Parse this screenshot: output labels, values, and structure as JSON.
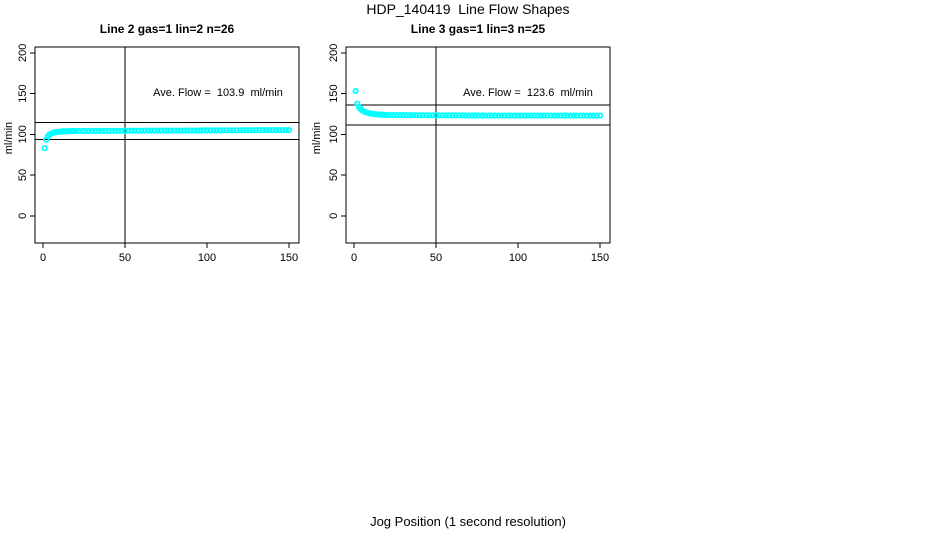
{
  "header": {
    "title": "HDP_140419  Line Flow Shapes"
  },
  "footer": {
    "xlabel": "Jog Position (1 second resolution)"
  },
  "colors": {
    "points": "#00FFFF",
    "axis": "#000000",
    "background": "#FFFFFF"
  },
  "chart_data": [
    {
      "type": "scatter",
      "title": "Line 2 gas=1 lin=2 n=26",
      "annotation": "Ave. Flow =  103.9  ml/min",
      "ave_flow": 103.9,
      "ylabel": "ml/min",
      "xlabel": "",
      "x_ticks": [
        0,
        50,
        100,
        150
      ],
      "y_ticks": [
        0,
        50,
        100,
        150,
        200
      ],
      "xlim": [
        0,
        155
      ],
      "ylim": [
        0,
        200
      ],
      "grid": false,
      "legend": null,
      "marker": "open-circle",
      "ref_line_x": 50,
      "ref_lines_y": [
        114.3,
        93.5
      ],
      "points": [
        [
          1,
          83
        ],
        [
          2,
          93.5
        ],
        [
          3,
          97.5
        ],
        [
          4,
          99.6
        ],
        [
          5,
          100.8
        ],
        [
          6,
          101.7
        ],
        [
          7,
          102.3
        ],
        [
          8,
          102.7
        ],
        [
          9,
          103
        ],
        [
          10,
          103.2
        ],
        [
          11,
          103.4
        ],
        [
          12,
          103.5
        ],
        [
          13,
          103.6
        ],
        [
          14,
          103.7
        ],
        [
          15,
          103.8
        ],
        [
          16,
          103.8
        ],
        [
          17,
          103.9
        ],
        [
          18,
          103.9
        ],
        [
          19,
          104
        ],
        [
          20,
          104
        ],
        [
          22,
          104.1
        ],
        [
          24,
          104.1
        ],
        [
          26,
          104.1
        ],
        [
          28,
          104.2
        ],
        [
          30,
          104.2
        ],
        [
          32,
          104.2
        ],
        [
          34,
          104.2
        ],
        [
          36,
          104.2
        ],
        [
          38,
          104.2
        ],
        [
          40,
          104.3
        ],
        [
          42,
          104.3
        ],
        [
          44,
          104.3
        ],
        [
          46,
          104.3
        ],
        [
          48,
          104.3
        ],
        [
          50,
          104.3
        ],
        [
          52,
          104.4
        ],
        [
          54,
          104.4
        ],
        [
          56,
          104.4
        ],
        [
          58,
          104.4
        ],
        [
          60,
          104.4
        ],
        [
          62,
          104.4
        ],
        [
          64,
          104.5
        ],
        [
          66,
          104.5
        ],
        [
          68,
          104.5
        ],
        [
          70,
          104.5
        ],
        [
          72,
          104.5
        ],
        [
          74,
          104.5
        ],
        [
          76,
          104.6
        ],
        [
          78,
          104.6
        ],
        [
          80,
          104.6
        ],
        [
          82,
          104.6
        ],
        [
          84,
          104.6
        ],
        [
          86,
          104.6
        ],
        [
          88,
          104.7
        ],
        [
          90,
          104.7
        ],
        [
          92,
          104.7
        ],
        [
          94,
          104.7
        ],
        [
          96,
          104.7
        ],
        [
          98,
          104.8
        ],
        [
          100,
          104.8
        ],
        [
          102,
          104.8
        ],
        [
          104,
          104.8
        ],
        [
          106,
          104.8
        ],
        [
          108,
          104.8
        ],
        [
          110,
          104.9
        ],
        [
          112,
          104.9
        ],
        [
          114,
          104.9
        ],
        [
          116,
          104.9
        ],
        [
          118,
          104.9
        ],
        [
          120,
          105
        ],
        [
          122,
          105
        ],
        [
          124,
          105
        ],
        [
          126,
          105
        ],
        [
          128,
          105
        ],
        [
          130,
          105
        ],
        [
          132,
          105.1
        ],
        [
          134,
          105.1
        ],
        [
          136,
          105.1
        ],
        [
          138,
          105.1
        ],
        [
          140,
          105.1
        ],
        [
          142,
          105.1
        ],
        [
          144,
          105.2
        ],
        [
          146,
          105.2
        ],
        [
          148,
          105.2
        ],
        [
          150,
          105.2
        ]
      ]
    },
    {
      "type": "scatter",
      "title": "Line 3 gas=1 lin=3 n=25",
      "annotation": "Ave. Flow =  123.6  ml/min",
      "ave_flow": 123.6,
      "ylabel": "ml/min",
      "xlabel": "",
      "x_ticks": [
        0,
        50,
        100,
        150
      ],
      "y_ticks": [
        0,
        50,
        100,
        150,
        200
      ],
      "xlim": [
        0,
        155
      ],
      "ylim": [
        0,
        200
      ],
      "grid": false,
      "legend": null,
      "marker": "open-circle",
      "ref_line_x": 50,
      "ref_lines_y": [
        136.0,
        111.2
      ],
      "points": [
        [
          1,
          153
        ],
        [
          2,
          137.5
        ],
        [
          3,
          133.5
        ],
        [
          4,
          131
        ],
        [
          5,
          129.3
        ],
        [
          6,
          128.1
        ],
        [
          7,
          127.2
        ],
        [
          8,
          126.5
        ],
        [
          9,
          126
        ],
        [
          10,
          125.6
        ],
        [
          11,
          125.2
        ],
        [
          12,
          124.9
        ],
        [
          13,
          124.7
        ],
        [
          14,
          124.5
        ],
        [
          15,
          124.3
        ],
        [
          16,
          124.1
        ],
        [
          17,
          124
        ],
        [
          18,
          123.9
        ],
        [
          19,
          123.8
        ],
        [
          20,
          123.7
        ],
        [
          22,
          123.6
        ],
        [
          24,
          123.6
        ],
        [
          26,
          123.5
        ],
        [
          28,
          123.5
        ],
        [
          30,
          123.5
        ],
        [
          32,
          123.5
        ],
        [
          34,
          123.5
        ],
        [
          36,
          123.4
        ],
        [
          38,
          123.4
        ],
        [
          40,
          123.4
        ],
        [
          42,
          123.4
        ],
        [
          44,
          123.4
        ],
        [
          46,
          123.3
        ],
        [
          48,
          123.3
        ],
        [
          50,
          123.3
        ],
        [
          52,
          123.3
        ],
        [
          54,
          123.3
        ],
        [
          56,
          123.2
        ],
        [
          58,
          123.2
        ],
        [
          60,
          123.2
        ],
        [
          62,
          123.2
        ],
        [
          64,
          123.2
        ],
        [
          66,
          123.2
        ],
        [
          68,
          123.1
        ],
        [
          70,
          123.1
        ],
        [
          72,
          123.1
        ],
        [
          74,
          123.1
        ],
        [
          76,
          123.1
        ],
        [
          78,
          123.1
        ],
        [
          80,
          123
        ],
        [
          82,
          123
        ],
        [
          84,
          123
        ],
        [
          86,
          123
        ],
        [
          88,
          123
        ],
        [
          90,
          123
        ],
        [
          92,
          123
        ],
        [
          94,
          122.9
        ],
        [
          96,
          122.9
        ],
        [
          98,
          122.9
        ],
        [
          100,
          122.9
        ],
        [
          102,
          122.9
        ],
        [
          104,
          122.9
        ],
        [
          106,
          122.9
        ],
        [
          108,
          122.9
        ],
        [
          110,
          122.9
        ],
        [
          112,
          122.9
        ],
        [
          114,
          122.9
        ],
        [
          116,
          122.9
        ],
        [
          118,
          122.9
        ],
        [
          120,
          122.9
        ],
        [
          122,
          122.9
        ],
        [
          124,
          122.9
        ],
        [
          126,
          122.9
        ],
        [
          128,
          122.9
        ],
        [
          130,
          122.9
        ],
        [
          132,
          122.9
        ],
        [
          134,
          122.9
        ],
        [
          136,
          122.9
        ],
        [
          138,
          122.9
        ],
        [
          140,
          122.9
        ],
        [
          142,
          122.9
        ],
        [
          144,
          122.9
        ],
        [
          146,
          122.9
        ],
        [
          148,
          122.9
        ],
        [
          150,
          122.9
        ]
      ]
    }
  ]
}
